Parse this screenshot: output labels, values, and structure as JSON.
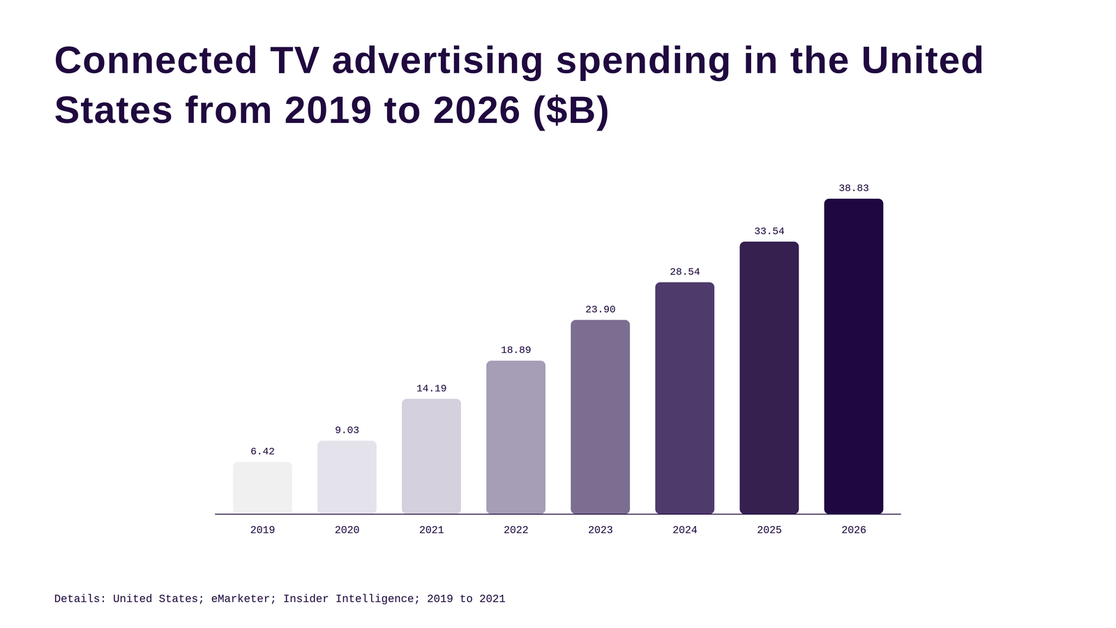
{
  "chart_data": {
    "type": "bar",
    "title": "Connected TV advertising spending in the United States from 2019 to 2026 ($B)",
    "caption": "Details: United States; eMarketer; Insider Intelligence; 2019 to 2021",
    "categories": [
      "2019",
      "2020",
      "2021",
      "2022",
      "2023",
      "2024",
      "2025",
      "2026"
    ],
    "values": [
      6.42,
      9.03,
      14.19,
      18.89,
      23.9,
      28.54,
      33.54,
      38.83
    ],
    "value_labels": [
      "6.42",
      "9.03",
      "14.19",
      "18.89",
      "23.90",
      "28.54",
      "33.54",
      "38.83"
    ],
    "colors": [
      "#f0f0f0",
      "#e4e2ea",
      "#d4d0de",
      "#a69db6",
      "#7b6e90",
      "#4f3a6c",
      "#352050",
      "#1f0842"
    ],
    "ylim": [
      0,
      38.83
    ],
    "yticks": [],
    "grid": false,
    "data_labels": true,
    "tick_labels": "x"
  }
}
